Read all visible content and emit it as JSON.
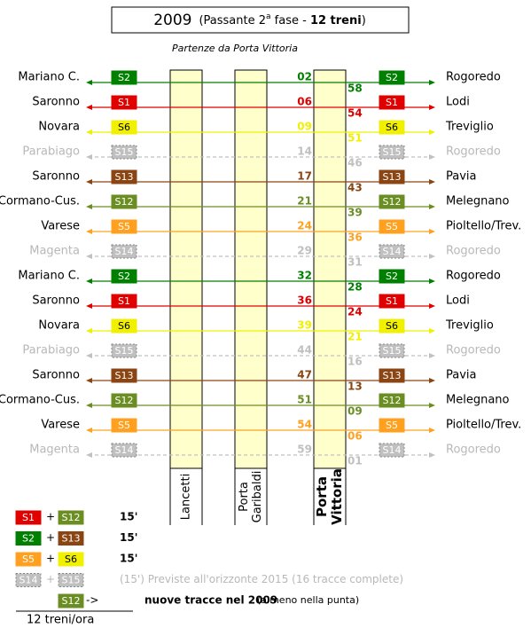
{
  "header": {
    "year": "2009",
    "note_prefix": "(Passante 2",
    "note_sup": "a",
    "note_mid": " fase - ",
    "note_bold": "12 treni",
    "note_suffix": ")"
  },
  "subtitle": "Partenze da Porta Vittoria",
  "rows": [
    {
      "left": "Mariano C.",
      "line": "S2",
      "dep": "02",
      "arr": "58",
      "right": "Rogoredo",
      "color": "#008000",
      "label_color": "#ffffff",
      "faded": false
    },
    {
      "left": "Saronno",
      "line": "S1",
      "dep": "06",
      "arr": "54",
      "right": "Lodi",
      "color": "#e00000",
      "label_color": "#ffffff",
      "faded": false
    },
    {
      "left": "Novara",
      "line": "S6",
      "dep": "09",
      "arr": "51",
      "right": "Treviglio",
      "color": "#f0f000",
      "label_color": "#000000",
      "faded": false
    },
    {
      "left": "Parabiago",
      "line": "S15",
      "dep": "14",
      "arr": "46",
      "right": "Rogoredo",
      "color": "#c0c0c0",
      "label_color": "#ffffff",
      "faded": true
    },
    {
      "left": "Saronno",
      "line": "S13",
      "dep": "17",
      "arr": "43",
      "right": "Pavia",
      "color": "#8b4513",
      "label_color": "#ffffff",
      "faded": false
    },
    {
      "left": "Cormano-Cus.",
      "line": "S12",
      "dep": "21",
      "arr": "39",
      "right": "Melegnano",
      "color": "#6b8e23",
      "label_color": "#ffffff",
      "faded": false
    },
    {
      "left": "Varese",
      "line": "S5",
      "dep": "24",
      "arr": "36",
      "right": "Pioltello/Trev.",
      "color": "#ffa020",
      "label_color": "#ffffff",
      "faded": false
    },
    {
      "left": "Magenta",
      "line": "S14",
      "dep": "29",
      "arr": "31",
      "right": "Rogoredo",
      "color": "#c0c0c0",
      "label_color": "#ffffff",
      "faded": true
    },
    {
      "left": "Mariano C.",
      "line": "S2",
      "dep": "32",
      "arr": "28",
      "right": "Rogoredo",
      "color": "#008000",
      "label_color": "#ffffff",
      "faded": false
    },
    {
      "left": "Saronno",
      "line": "S1",
      "dep": "36",
      "arr": "24",
      "right": "Lodi",
      "color": "#e00000",
      "label_color": "#ffffff",
      "faded": false
    },
    {
      "left": "Novara",
      "line": "S6",
      "dep": "39",
      "arr": "21",
      "right": "Treviglio",
      "color": "#f0f000",
      "label_color": "#000000",
      "faded": false
    },
    {
      "left": "Parabiago",
      "line": "S15",
      "dep": "44",
      "arr": "16",
      "right": "Rogoredo",
      "color": "#c0c0c0",
      "label_color": "#ffffff",
      "faded": true
    },
    {
      "left": "Saronno",
      "line": "S13",
      "dep": "47",
      "arr": "13",
      "right": "Pavia",
      "color": "#8b4513",
      "label_color": "#ffffff",
      "faded": false
    },
    {
      "left": "Cormano-Cus.",
      "line": "S12",
      "dep": "51",
      "arr": "09",
      "right": "Melegnano",
      "color": "#6b8e23",
      "label_color": "#ffffff",
      "faded": false
    },
    {
      "left": "Varese",
      "line": "S5",
      "dep": "54",
      "arr": "06",
      "right": "Pioltello/Trev.",
      "color": "#ffa020",
      "label_color": "#ffffff",
      "faded": false
    },
    {
      "left": "Magenta",
      "line": "S14",
      "dep": "59",
      "arr": "01",
      "right": "Rogoredo",
      "color": "#c0c0c0",
      "label_color": "#ffffff",
      "faded": true
    }
  ],
  "stations": [
    {
      "lines": [
        "Lancetti"
      ],
      "bold": false
    },
    {
      "lines": [
        "Porta",
        "Garibaldi"
      ],
      "bold": false
    },
    {
      "lines": [
        "Porta",
        "Vittoria"
      ],
      "bold": true
    }
  ],
  "legend": {
    "rows": [
      {
        "badges": [
          {
            "label": "S1",
            "color": "#e00000",
            "label_color": "#ffffff",
            "faded": false
          },
          {
            "label": "S12",
            "color": "#6b8e23",
            "label_color": "#ffffff",
            "faded": false
          }
        ],
        "joiner": "+",
        "text": "15'",
        "faded": false
      },
      {
        "badges": [
          {
            "label": "S2",
            "color": "#008000",
            "label_color": "#ffffff",
            "faded": false
          },
          {
            "label": "S13",
            "color": "#8b4513",
            "label_color": "#ffffff",
            "faded": false
          }
        ],
        "joiner": "+",
        "text": "15'",
        "faded": false
      },
      {
        "badges": [
          {
            "label": "S5",
            "color": "#ffa020",
            "label_color": "#ffffff",
            "faded": false
          },
          {
            "label": "S6",
            "color": "#f0f000",
            "label_color": "#000000",
            "faded": false
          }
        ],
        "joiner": "+",
        "text": "15'",
        "faded": false
      },
      {
        "badges": [
          {
            "label": "S14",
            "color": "#c0c0c0",
            "label_color": "#ffffff",
            "faded": true
          },
          {
            "label": "S15",
            "color": "#c0c0c0",
            "label_color": "#ffffff",
            "faded": true
          }
        ],
        "joiner": "+",
        "text": "(15') Previste all'orizzonte 2015 (16 tracce complete)",
        "faded": true
      },
      {
        "badges": [
          {
            "label": "S12",
            "color": "#6b8e23",
            "label_color": "#ffffff",
            "faded": false
          }
        ],
        "joiner": "->",
        "text": "nuove tracce nel 2009",
        "note": "(almeno nella punta)",
        "faded": false
      }
    ],
    "footer": "12 treni/ora"
  }
}
